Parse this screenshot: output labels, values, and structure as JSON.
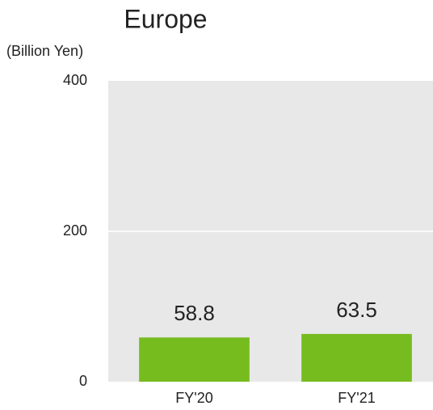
{
  "chart_data": {
    "type": "bar",
    "title": "Europe",
    "y_label": "(Billion Yen)",
    "categories": [
      "FY'20",
      "FY'21"
    ],
    "values": [
      58.8,
      63.5
    ],
    "color": "#77bc1f",
    "ylim": [
      0,
      400
    ],
    "yticks": [
      0,
      200,
      400
    ],
    "grid": true,
    "data_labels": true
  }
}
